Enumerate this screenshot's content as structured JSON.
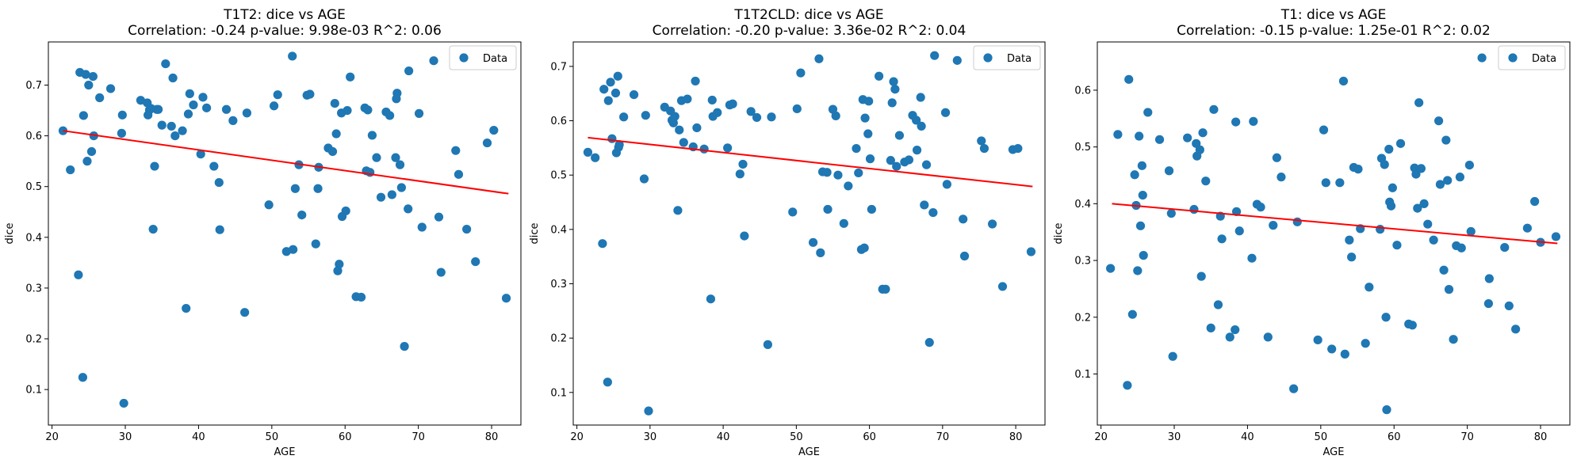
{
  "chart_data": [
    {
      "type": "scatter",
      "title": "T1T2: dice vs AGE",
      "subtitle": "Correlation: -0.24 p-value: 9.98e-03 R^2: 0.06",
      "xlabel": "AGE",
      "ylabel": "dice",
      "xlim": [
        19.5,
        84
      ],
      "ylim": [
        0.03,
        0.785
      ],
      "xticks": [
        20,
        30,
        40,
        50,
        60,
        70,
        80
      ],
      "yticks": [
        0.1,
        0.2,
        0.3,
        0.4,
        0.5,
        0.6,
        0.7
      ],
      "legend": {
        "label": "Data",
        "placement": "top-right"
      },
      "point_color": "#1f77b4",
      "fit_color": "#ff0000",
      "fit_line": {
        "x": [
          21.5,
          82.3
        ],
        "y": [
          0.61,
          0.486
        ]
      },
      "points": [
        [
          21.5,
          0.61
        ],
        [
          22.5,
          0.533
        ],
        [
          23.6,
          0.326
        ],
        [
          23.8,
          0.725
        ],
        [
          24.2,
          0.124
        ],
        [
          24.3,
          0.64
        ],
        [
          24.6,
          0.721
        ],
        [
          24.8,
          0.55
        ],
        [
          25.0,
          0.7
        ],
        [
          25.4,
          0.569
        ],
        [
          25.6,
          0.717
        ],
        [
          25.7,
          0.6
        ],
        [
          26.5,
          0.675
        ],
        [
          28.0,
          0.693
        ],
        [
          29.5,
          0.605
        ],
        [
          29.6,
          0.641
        ],
        [
          29.8,
          0.073
        ],
        [
          32.1,
          0.67
        ],
        [
          33.0,
          0.665
        ],
        [
          33.1,
          0.641
        ],
        [
          33.3,
          0.651
        ],
        [
          33.5,
          0.654
        ],
        [
          33.8,
          0.416
        ],
        [
          34.0,
          0.54
        ],
        [
          34.3,
          0.652
        ],
        [
          34.5,
          0.652
        ],
        [
          35.0,
          0.621
        ],
        [
          35.5,
          0.742
        ],
        [
          36.3,
          0.619
        ],
        [
          36.5,
          0.714
        ],
        [
          36.8,
          0.6
        ],
        [
          37.8,
          0.61
        ],
        [
          38.3,
          0.26
        ],
        [
          38.6,
          0.643
        ],
        [
          38.8,
          0.683
        ],
        [
          39.3,
          0.661
        ],
        [
          40.3,
          0.564
        ],
        [
          40.6,
          0.676
        ],
        [
          41.1,
          0.655
        ],
        [
          42.1,
          0.54
        ],
        [
          42.8,
          0.508
        ],
        [
          42.9,
          0.415
        ],
        [
          43.8,
          0.652
        ],
        [
          44.7,
          0.63
        ],
        [
          46.3,
          0.252
        ],
        [
          46.6,
          0.645
        ],
        [
          49.6,
          0.464
        ],
        [
          50.3,
          0.659
        ],
        [
          50.8,
          0.681
        ],
        [
          52.0,
          0.372
        ],
        [
          52.8,
          0.757
        ],
        [
          52.9,
          0.376
        ],
        [
          53.2,
          0.496
        ],
        [
          53.7,
          0.543
        ],
        [
          54.1,
          0.444
        ],
        [
          54.8,
          0.68
        ],
        [
          55.2,
          0.682
        ],
        [
          56.0,
          0.387
        ],
        [
          56.3,
          0.496
        ],
        [
          56.4,
          0.538
        ],
        [
          57.7,
          0.576
        ],
        [
          58.3,
          0.569
        ],
        [
          58.6,
          0.664
        ],
        [
          58.8,
          0.604
        ],
        [
          59.0,
          0.334
        ],
        [
          59.2,
          0.347
        ],
        [
          59.5,
          0.645
        ],
        [
          59.6,
          0.441
        ],
        [
          60.1,
          0.452
        ],
        [
          60.3,
          0.65
        ],
        [
          60.7,
          0.716
        ],
        [
          61.5,
          0.283
        ],
        [
          62.2,
          0.282
        ],
        [
          62.7,
          0.655
        ],
        [
          62.9,
          0.531
        ],
        [
          63.1,
          0.651
        ],
        [
          63.4,
          0.528
        ],
        [
          63.7,
          0.601
        ],
        [
          64.3,
          0.557
        ],
        [
          64.9,
          0.479
        ],
        [
          65.6,
          0.647
        ],
        [
          66.1,
          0.64
        ],
        [
          66.4,
          0.484
        ],
        [
          66.9,
          0.557
        ],
        [
          67.0,
          0.673
        ],
        [
          67.1,
          0.684
        ],
        [
          67.5,
          0.543
        ],
        [
          67.7,
          0.498
        ],
        [
          68.1,
          0.185
        ],
        [
          68.6,
          0.456
        ],
        [
          68.7,
          0.728
        ],
        [
          70.1,
          0.644
        ],
        [
          70.5,
          0.42
        ],
        [
          72.1,
          0.748
        ],
        [
          72.8,
          0.44
        ],
        [
          73.1,
          0.331
        ],
        [
          75.1,
          0.571
        ],
        [
          75.5,
          0.524
        ],
        [
          76.6,
          0.416
        ],
        [
          77.8,
          0.352
        ],
        [
          79.4,
          0.586
        ],
        [
          80.3,
          0.611
        ],
        [
          82.0,
          0.28
        ]
      ]
    },
    {
      "type": "scatter",
      "title": "T1T2CLD: dice vs AGE",
      "subtitle": "Correlation: -0.20 p-value: 3.36e-02 R^2: 0.04",
      "xlabel": "AGE",
      "ylabel": "dice",
      "xlim": [
        19.5,
        84
      ],
      "ylim": [
        0.04,
        0.745
      ],
      "xticks": [
        20,
        30,
        40,
        50,
        60,
        70,
        80
      ],
      "yticks": [
        0.1,
        0.2,
        0.3,
        0.4,
        0.5,
        0.6,
        0.7
      ],
      "legend": {
        "label": "Data",
        "placement": "top-right"
      },
      "point_color": "#1f77b4",
      "fit_color": "#ff0000",
      "fit_line": {
        "x": [
          21.5,
          82.3
        ],
        "y": [
          0.569,
          0.479
        ]
      },
      "points": [
        [
          21.5,
          0.542
        ],
        [
          22.5,
          0.532
        ],
        [
          23.5,
          0.374
        ],
        [
          23.7,
          0.658
        ],
        [
          24.2,
          0.119
        ],
        [
          24.3,
          0.637
        ],
        [
          24.6,
          0.671
        ],
        [
          24.8,
          0.567
        ],
        [
          25.3,
          0.651
        ],
        [
          25.4,
          0.541
        ],
        [
          25.6,
          0.682
        ],
        [
          25.7,
          0.551
        ],
        [
          25.8,
          0.556
        ],
        [
          26.4,
          0.607
        ],
        [
          27.8,
          0.648
        ],
        [
          29.2,
          0.493
        ],
        [
          29.4,
          0.61
        ],
        [
          29.8,
          0.066
        ],
        [
          32.0,
          0.625
        ],
        [
          32.8,
          0.618
        ],
        [
          33.0,
          0.601
        ],
        [
          33.2,
          0.596
        ],
        [
          33.4,
          0.608
        ],
        [
          33.8,
          0.435
        ],
        [
          34.0,
          0.583
        ],
        [
          34.3,
          0.637
        ],
        [
          34.6,
          0.56
        ],
        [
          35.1,
          0.64
        ],
        [
          35.9,
          0.552
        ],
        [
          36.2,
          0.673
        ],
        [
          36.4,
          0.587
        ],
        [
          37.4,
          0.548
        ],
        [
          38.3,
          0.272
        ],
        [
          38.5,
          0.638
        ],
        [
          38.6,
          0.608
        ],
        [
          39.2,
          0.615
        ],
        [
          40.6,
          0.55
        ],
        [
          40.9,
          0.629
        ],
        [
          41.3,
          0.631
        ],
        [
          42.3,
          0.502
        ],
        [
          42.7,
          0.52
        ],
        [
          42.9,
          0.388
        ],
        [
          43.8,
          0.617
        ],
        [
          44.6,
          0.606
        ],
        [
          46.1,
          0.188
        ],
        [
          46.6,
          0.607
        ],
        [
          49.5,
          0.432
        ],
        [
          50.1,
          0.622
        ],
        [
          50.6,
          0.688
        ],
        [
          52.3,
          0.376
        ],
        [
          53.1,
          0.714
        ],
        [
          53.3,
          0.357
        ],
        [
          53.6,
          0.506
        ],
        [
          54.2,
          0.505
        ],
        [
          54.3,
          0.437
        ],
        [
          55.0,
          0.621
        ],
        [
          55.4,
          0.609
        ],
        [
          55.7,
          0.5
        ],
        [
          56.5,
          0.411
        ],
        [
          57.1,
          0.48
        ],
        [
          58.2,
          0.549
        ],
        [
          58.5,
          0.504
        ],
        [
          58.9,
          0.363
        ],
        [
          59.1,
          0.639
        ],
        [
          59.3,
          0.366
        ],
        [
          59.4,
          0.605
        ],
        [
          59.8,
          0.576
        ],
        [
          59.9,
          0.636
        ],
        [
          60.1,
          0.53
        ],
        [
          60.3,
          0.437
        ],
        [
          61.3,
          0.682
        ],
        [
          61.8,
          0.29
        ],
        [
          62.2,
          0.29
        ],
        [
          62.9,
          0.527
        ],
        [
          63.1,
          0.633
        ],
        [
          63.3,
          0.672
        ],
        [
          63.5,
          0.658
        ],
        [
          63.7,
          0.516
        ],
        [
          64.1,
          0.573
        ],
        [
          64.8,
          0.524
        ],
        [
          65.4,
          0.528
        ],
        [
          65.9,
          0.61
        ],
        [
          66.4,
          0.601
        ],
        [
          66.5,
          0.546
        ],
        [
          67.0,
          0.643
        ],
        [
          67.1,
          0.59
        ],
        [
          67.5,
          0.445
        ],
        [
          67.8,
          0.519
        ],
        [
          68.2,
          0.192
        ],
        [
          68.7,
          0.431
        ],
        [
          68.9,
          0.72
        ],
        [
          70.4,
          0.615
        ],
        [
          70.6,
          0.483
        ],
        [
          72.0,
          0.711
        ],
        [
          72.8,
          0.419
        ],
        [
          73.0,
          0.351
        ],
        [
          75.3,
          0.563
        ],
        [
          75.7,
          0.549
        ],
        [
          76.8,
          0.41
        ],
        [
          78.2,
          0.295
        ],
        [
          79.6,
          0.547
        ],
        [
          80.3,
          0.549
        ],
        [
          82.1,
          0.359
        ]
      ]
    },
    {
      "type": "scatter",
      "title": "T1: dice vs AGE",
      "subtitle": "Correlation: -0.15 p-value: 1.25e-01 R^2: 0.02",
      "xlabel": "AGE",
      "ylabel": "dice",
      "xlim": [
        19.5,
        84
      ],
      "ylim": [
        0.01,
        0.685
      ],
      "xticks": [
        20,
        30,
        40,
        50,
        60,
        70,
        80
      ],
      "yticks": [
        0.1,
        0.2,
        0.3,
        0.4,
        0.5,
        0.6
      ],
      "legend": {
        "label": "Data",
        "placement": "top-right"
      },
      "point_color": "#1f77b4",
      "fit_color": "#ff0000",
      "fit_line": {
        "x": [
          21.5,
          82.3
        ],
        "y": [
          0.4,
          0.33
        ]
      },
      "points": [
        [
          21.3,
          0.286
        ],
        [
          22.3,
          0.522
        ],
        [
          23.6,
          0.08
        ],
        [
          23.8,
          0.619
        ],
        [
          24.3,
          0.205
        ],
        [
          24.6,
          0.451
        ],
        [
          24.8,
          0.397
        ],
        [
          25.0,
          0.282
        ],
        [
          25.2,
          0.519
        ],
        [
          25.4,
          0.361
        ],
        [
          25.6,
          0.467
        ],
        [
          25.7,
          0.415
        ],
        [
          25.8,
          0.309
        ],
        [
          26.4,
          0.561
        ],
        [
          28.0,
          0.513
        ],
        [
          29.3,
          0.458
        ],
        [
          29.6,
          0.383
        ],
        [
          29.8,
          0.131
        ],
        [
          31.8,
          0.516
        ],
        [
          32.7,
          0.39
        ],
        [
          33.0,
          0.506
        ],
        [
          33.1,
          0.484
        ],
        [
          33.5,
          0.495
        ],
        [
          33.7,
          0.272
        ],
        [
          33.9,
          0.525
        ],
        [
          34.3,
          0.44
        ],
        [
          35.0,
          0.181
        ],
        [
          35.4,
          0.566
        ],
        [
          36.0,
          0.222
        ],
        [
          36.3,
          0.378
        ],
        [
          36.5,
          0.338
        ],
        [
          37.6,
          0.165
        ],
        [
          38.3,
          0.178
        ],
        [
          38.4,
          0.544
        ],
        [
          38.5,
          0.386
        ],
        [
          38.9,
          0.352
        ],
        [
          40.6,
          0.304
        ],
        [
          40.8,
          0.545
        ],
        [
          41.3,
          0.399
        ],
        [
          41.8,
          0.394
        ],
        [
          42.8,
          0.165
        ],
        [
          43.5,
          0.362
        ],
        [
          44.0,
          0.481
        ],
        [
          44.6,
          0.447
        ],
        [
          46.3,
          0.074
        ],
        [
          46.8,
          0.368
        ],
        [
          49.6,
          0.16
        ],
        [
          50.4,
          0.53
        ],
        [
          50.7,
          0.437
        ],
        [
          51.5,
          0.144
        ],
        [
          52.6,
          0.437
        ],
        [
          53.1,
          0.616
        ],
        [
          53.3,
          0.135
        ],
        [
          53.9,
          0.336
        ],
        [
          54.2,
          0.306
        ],
        [
          54.5,
          0.464
        ],
        [
          55.1,
          0.461
        ],
        [
          55.4,
          0.356
        ],
        [
          56.1,
          0.154
        ],
        [
          56.6,
          0.253
        ],
        [
          58.1,
          0.355
        ],
        [
          58.3,
          0.48
        ],
        [
          58.7,
          0.469
        ],
        [
          58.9,
          0.2
        ],
        [
          59.0,
          0.037
        ],
        [
          59.3,
          0.496
        ],
        [
          59.4,
          0.403
        ],
        [
          59.6,
          0.396
        ],
        [
          59.8,
          0.428
        ],
        [
          60.4,
          0.327
        ],
        [
          60.9,
          0.506
        ],
        [
          62.0,
          0.188
        ],
        [
          62.5,
          0.186
        ],
        [
          62.8,
          0.463
        ],
        [
          63.0,
          0.452
        ],
        [
          63.2,
          0.392
        ],
        [
          63.4,
          0.578
        ],
        [
          63.7,
          0.462
        ],
        [
          64.1,
          0.4
        ],
        [
          64.6,
          0.364
        ],
        [
          65.4,
          0.336
        ],
        [
          66.1,
          0.546
        ],
        [
          66.3,
          0.434
        ],
        [
          66.8,
          0.283
        ],
        [
          67.1,
          0.512
        ],
        [
          67.3,
          0.441
        ],
        [
          67.5,
          0.249
        ],
        [
          68.1,
          0.161
        ],
        [
          68.5,
          0.326
        ],
        [
          69.0,
          0.447
        ],
        [
          69.2,
          0.322
        ],
        [
          70.3,
          0.468
        ],
        [
          70.5,
          0.351
        ],
        [
          72.0,
          0.657
        ],
        [
          72.9,
          0.224
        ],
        [
          73.0,
          0.268
        ],
        [
          75.1,
          0.323
        ],
        [
          75.7,
          0.22
        ],
        [
          76.6,
          0.179
        ],
        [
          78.2,
          0.357
        ],
        [
          79.2,
          0.404
        ],
        [
          80.0,
          0.332
        ],
        [
          82.1,
          0.342
        ]
      ]
    }
  ]
}
